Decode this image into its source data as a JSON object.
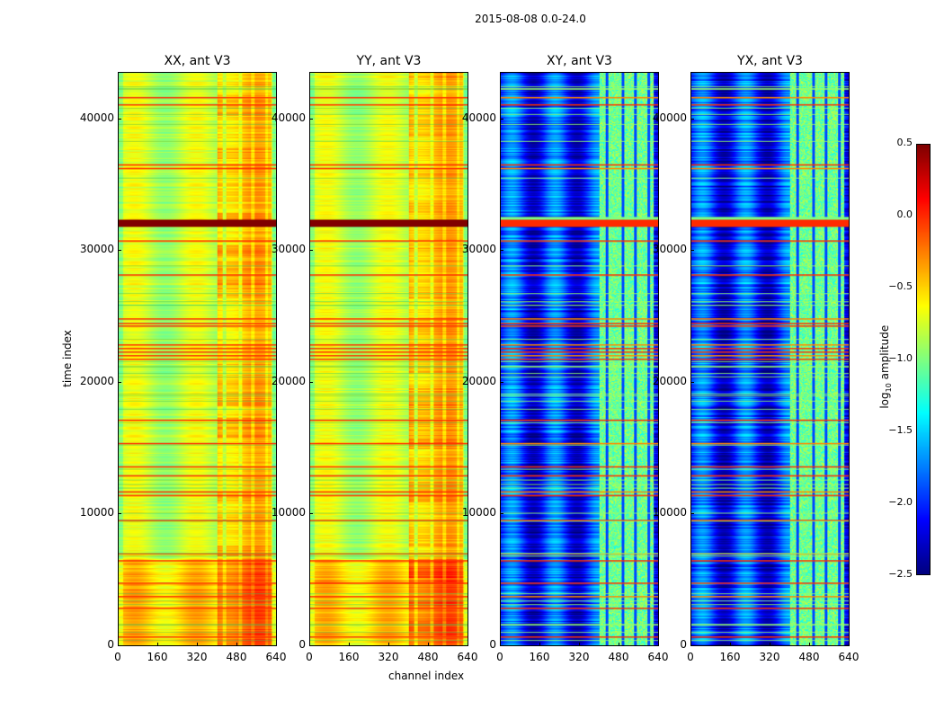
{
  "chart_data": {
    "type": "heatmap",
    "title": "2015-08-08 0.0-24.0",
    "xlabel": "channel index",
    "ylabel": "time index",
    "xlim": [
      0,
      640
    ],
    "ylim": [
      0,
      43600
    ],
    "xticks": [
      "0",
      "160",
      "320",
      "480",
      "640"
    ],
    "yticks": [
      "0",
      "10000",
      "20000",
      "30000",
      "40000"
    ],
    "panels": [
      {
        "title": "XX, ant V3",
        "kind": "auto",
        "base_log_amp": -0.8
      },
      {
        "title": "YY, ant V3",
        "kind": "auto",
        "base_log_amp": -0.8
      },
      {
        "title": "XY, ant V3",
        "kind": "cross",
        "base_log_amp": -2.0
      },
      {
        "title": "YX, ant V3",
        "kind": "cross",
        "base_log_amp": -2.0
      }
    ],
    "colorbar": {
      "label": "log10 amplitude",
      "label_main": "log",
      "label_sub": "10",
      "label_rest": " amplitude",
      "range": [
        -2.5,
        0.5
      ],
      "ticks": [
        "0.5",
        "0.0",
        "−0.5",
        "−1.0",
        "−1.5",
        "−2.0",
        "−2.5"
      ],
      "colormap": "jet"
    },
    "flagged_band": [
      31800,
      32350
    ],
    "flagged_rows": [
      41700,
      41160,
      36590,
      36310,
      30790,
      28190,
      24850,
      24500,
      24300,
      22870,
      22590,
      22320,
      22050,
      21780,
      17130,
      15360,
      13580,
      12900,
      11670,
      11400,
      9490,
      6960,
      6420,
      4710,
      3690,
      2800,
      610
    ],
    "active_channel_range": [
      400,
      620
    ]
  }
}
